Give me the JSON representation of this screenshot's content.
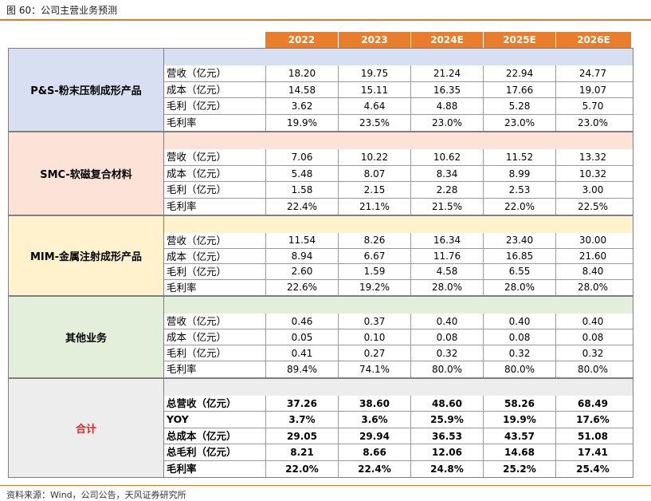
{
  "title": "图 60：公司主营业务预测",
  "source": "资料来源：Wind，公司公告，天风证券研究所",
  "years": [
    "2022",
    "2023",
    "2024E",
    "2025E",
    "2026E"
  ],
  "groups": [
    {
      "label": "P&S-粉末压制成形产品",
      "rows": [
        {
          "label": "营收（亿元）",
          "values": [
            "18.20",
            "19.75",
            "21.24",
            "22.94",
            "24.77"
          ]
        },
        {
          "label": "成本（亿元）",
          "values": [
            "14.58",
            "15.11",
            "16.35",
            "17.66",
            "19.07"
          ]
        },
        {
          "label": "毛利（亿元）",
          "values": [
            "3.62",
            "4.64",
            "4.88",
            "5.28",
            "5.70"
          ]
        },
        {
          "label": "毛利率",
          "values": [
            "19.9%",
            "23.5%",
            "23.0%",
            "23.0%",
            "23.0%"
          ]
        }
      ]
    },
    {
      "label": "SMC-软磁复合材料",
      "rows": [
        {
          "label": "营收（亿元）",
          "values": [
            "7.06",
            "10.22",
            "10.62",
            "11.52",
            "13.32"
          ]
        },
        {
          "label": "成本（亿元）",
          "values": [
            "5.48",
            "8.07",
            "8.34",
            "8.99",
            "10.32"
          ]
        },
        {
          "label": "毛利（亿元）",
          "values": [
            "1.58",
            "2.15",
            "2.28",
            "2.53",
            "3.00"
          ]
        },
        {
          "label": "毛利率",
          "values": [
            "22.4%",
            "21.1%",
            "21.5%",
            "22.0%",
            "22.5%"
          ]
        }
      ]
    },
    {
      "label": "MIM-金属注射成形产品",
      "rows": [
        {
          "label": "营收（亿元）",
          "values": [
            "11.54",
            "8.26",
            "16.34",
            "23.40",
            "30.00"
          ]
        },
        {
          "label": "成本（亿元）",
          "values": [
            "8.94",
            "6.67",
            "11.76",
            "16.85",
            "21.60"
          ]
        },
        {
          "label": "毛利（亿元）",
          "values": [
            "2.60",
            "1.59",
            "4.58",
            "6.55",
            "8.40"
          ]
        },
        {
          "label": "毛利率",
          "values": [
            "22.6%",
            "19.2%",
            "28.0%",
            "28.0%",
            "28.0%"
          ]
        }
      ]
    },
    {
      "label": "其他业务",
      "rows": [
        {
          "label": "营收（亿元）",
          "values": [
            "0.46",
            "0.37",
            "0.40",
            "0.40",
            "0.40"
          ]
        },
        {
          "label": "成本（亿元）",
          "values": [
            "0.05",
            "0.10",
            "0.08",
            "0.08",
            "0.08"
          ]
        },
        {
          "label": "毛利（亿元）",
          "values": [
            "0.41",
            "0.27",
            "0.32",
            "0.32",
            "0.32"
          ]
        },
        {
          "label": "毛利率",
          "values": [
            "89.4%",
            "74.1%",
            "80.0%",
            "80.0%",
            "80.0%"
          ]
        }
      ]
    },
    {
      "label": "合计",
      "rows": [
        {
          "label": "总营收（亿元）",
          "values": [
            "37.26",
            "38.60",
            "48.60",
            "58.26",
            "68.49"
          ]
        },
        {
          "label": "YOY",
          "values": [
            "3.7%",
            "3.6%",
            "25.9%",
            "19.9%",
            "17.6%"
          ]
        },
        {
          "label": "总成本（亿元）",
          "values": [
            "29.05",
            "29.94",
            "36.53",
            "43.57",
            "51.08"
          ]
        },
        {
          "label": "总毛利（亿元）",
          "values": [
            "8.21",
            "8.66",
            "12.06",
            "14.68",
            "17.41"
          ]
        },
        {
          "label": "毛利率",
          "values": [
            "22.0%",
            "22.4%",
            "24.8%",
            "25.2%",
            "25.4%"
          ]
        }
      ]
    }
  ],
  "colors": {
    "header": "#ea7d2c",
    "accent_rule": "#d9782d",
    "group_fills": [
      "#d9dff2",
      "#fde3d7",
      "#fff2cc",
      "#e3eedb",
      "#ededed"
    ],
    "total_label": "#e8241c"
  }
}
